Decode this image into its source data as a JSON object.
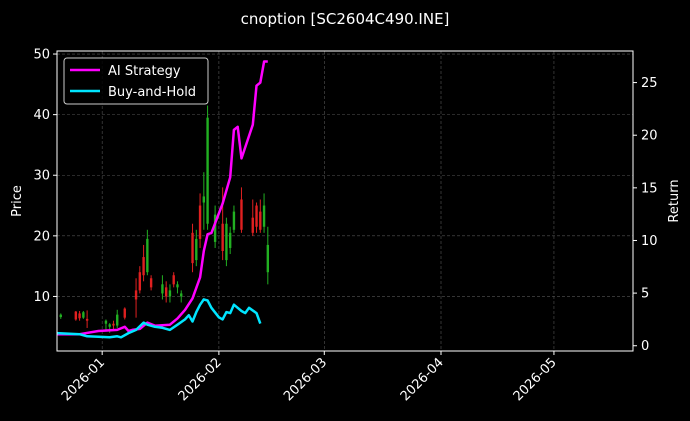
{
  "chart_data": {
    "type": "line",
    "title": "cnoption [SC2604C490.INE]",
    "ylabel_left": "Price",
    "ylabel_right": "Return",
    "x_range": [
      "2025-12-20",
      "2026-05-22"
    ],
    "x_ticks": [
      "2026-01",
      "2026-02",
      "2026-03",
      "2026-04",
      "2026-05"
    ],
    "ylim_left": [
      1,
      50.5
    ],
    "ylim_right": [
      -0.5,
      28
    ],
    "yticks_left": [
      10,
      20,
      30,
      40,
      50
    ],
    "yticks_right": [
      0,
      5,
      10,
      15,
      20,
      25
    ],
    "grid": true,
    "legend_position": "top-left",
    "colors": {
      "background": "#000000",
      "ai_strategy": "#ff00ff",
      "buy_and_hold": "#00e5ff",
      "candle_up": "#22b022",
      "candle_down": "#e02020",
      "grid": "#555555"
    },
    "series": [
      {
        "name": "AI Strategy",
        "axis": "right",
        "points": [
          [
            "2025-12-20",
            1.1
          ],
          [
            "2025-12-26",
            1.1
          ],
          [
            "2025-12-31",
            1.4
          ],
          [
            "2026-01-05",
            1.5
          ],
          [
            "2026-01-07",
            1.8
          ],
          [
            "2026-01-08",
            1.4
          ],
          [
            "2026-01-09",
            1.5
          ],
          [
            "2026-01-11",
            1.6
          ],
          [
            "2026-01-13",
            2.2
          ],
          [
            "2026-01-15",
            1.9
          ],
          [
            "2026-01-19",
            2.0
          ],
          [
            "2026-01-21",
            2.6
          ],
          [
            "2026-01-23",
            3.4
          ],
          [
            "2026-01-25",
            4.5
          ],
          [
            "2026-01-27",
            6.5
          ],
          [
            "2026-01-28",
            9.0
          ],
          [
            "2026-01-29",
            10.6
          ],
          [
            "2026-01-30",
            10.7
          ],
          [
            "2026-02-02",
            13.5
          ],
          [
            "2026-02-04",
            16.0
          ],
          [
            "2026-02-05",
            20.5
          ],
          [
            "2026-02-06",
            20.8
          ],
          [
            "2026-02-07",
            17.8
          ],
          [
            "2026-02-10",
            21.0
          ],
          [
            "2026-02-11",
            24.7
          ],
          [
            "2026-02-12",
            25.0
          ],
          [
            "2026-02-13",
            27.0
          ],
          [
            "2026-02-14",
            27.0
          ]
        ]
      },
      {
        "name": "Buy-and-Hold",
        "axis": "right",
        "points": [
          [
            "2025-12-20",
            1.2
          ],
          [
            "2025-12-26",
            1.1
          ],
          [
            "2025-12-28",
            0.9
          ],
          [
            "2026-01-03",
            0.8
          ],
          [
            "2026-01-05",
            0.9
          ],
          [
            "2026-01-06",
            0.8
          ],
          [
            "2026-01-08",
            1.2
          ],
          [
            "2026-01-10",
            1.5
          ],
          [
            "2026-01-12",
            2.2
          ],
          [
            "2026-01-13",
            2.0
          ],
          [
            "2026-01-15",
            1.8
          ],
          [
            "2026-01-17",
            1.7
          ],
          [
            "2026-01-19",
            1.5
          ],
          [
            "2026-01-21",
            2.0
          ],
          [
            "2026-01-23",
            2.5
          ],
          [
            "2026-01-24",
            2.9
          ],
          [
            "2026-01-25",
            2.3
          ],
          [
            "2026-01-26",
            3.2
          ],
          [
            "2026-01-27",
            3.9
          ],
          [
            "2026-01-28",
            4.4
          ],
          [
            "2026-01-29",
            4.3
          ],
          [
            "2026-01-30",
            3.6
          ],
          [
            "2026-02-01",
            2.7
          ],
          [
            "2026-02-02",
            2.5
          ],
          [
            "2026-02-03",
            3.2
          ],
          [
            "2026-02-04",
            3.1
          ],
          [
            "2026-02-05",
            3.9
          ],
          [
            "2026-02-07",
            3.3
          ],
          [
            "2026-02-08",
            3.1
          ],
          [
            "2026-02-09",
            3.6
          ],
          [
            "2026-02-11",
            3.1
          ],
          [
            "2026-02-12",
            2.1
          ]
        ]
      }
    ],
    "candles": [
      {
        "date": "2025-12-21",
        "open": 6.6,
        "high": 7.2,
        "low": 6.3,
        "close": 7.0
      },
      {
        "date": "2025-12-25",
        "open": 7.5,
        "high": 7.6,
        "low": 6.0,
        "close": 6.2
      },
      {
        "date": "2025-12-26",
        "open": 7.2,
        "high": 7.6,
        "low": 6.0,
        "close": 6.4
      },
      {
        "date": "2025-12-27",
        "open": 6.5,
        "high": 7.6,
        "low": 6.3,
        "close": 7.4
      },
      {
        "date": "2025-12-28",
        "open": 6.3,
        "high": 7.7,
        "low": 4.8,
        "close": 6.0
      },
      {
        "date": "2026-01-02",
        "open": 5.5,
        "high": 6.2,
        "low": 4.2,
        "close": 6.0
      },
      {
        "date": "2026-01-03",
        "open": 5.0,
        "high": 5.6,
        "low": 4.0,
        "close": 5.4
      },
      {
        "date": "2026-01-04",
        "open": 5.5,
        "high": 6.0,
        "low": 4.5,
        "close": 5.2
      },
      {
        "date": "2026-01-05",
        "open": 5.2,
        "high": 7.8,
        "low": 4.8,
        "close": 7.0
      },
      {
        "date": "2026-01-07",
        "open": 8.0,
        "high": 8.2,
        "low": 6.2,
        "close": 6.5
      },
      {
        "date": "2026-01-10",
        "open": 11.0,
        "high": 13.0,
        "low": 6.5,
        "close": 9.5
      },
      {
        "date": "2026-01-11",
        "open": 14.0,
        "high": 15.0,
        "low": 10.5,
        "close": 11.0
      },
      {
        "date": "2026-01-12",
        "open": 16.5,
        "high": 18.5,
        "low": 12.5,
        "close": 13.5
      },
      {
        "date": "2026-01-13",
        "open": 14.0,
        "high": 21.0,
        "low": 13.5,
        "close": 19.5
      },
      {
        "date": "2026-01-14",
        "open": 13.0,
        "high": 13.5,
        "low": 11.0,
        "close": 11.5
      },
      {
        "date": "2026-01-17",
        "open": 10.5,
        "high": 13.5,
        "low": 9.5,
        "close": 12.0
      },
      {
        "date": "2026-01-18",
        "open": 11.5,
        "high": 12.5,
        "low": 9.0,
        "close": 10.0
      },
      {
        "date": "2026-01-19",
        "open": 10.0,
        "high": 12.0,
        "low": 9.0,
        "close": 11.0
      },
      {
        "date": "2026-01-20",
        "open": 13.5,
        "high": 14.0,
        "low": 11.5,
        "close": 12.0
      },
      {
        "date": "2026-01-21",
        "open": 11.5,
        "high": 12.5,
        "low": 10.5,
        "close": 12.0
      },
      {
        "date": "2026-01-22",
        "open": 10.0,
        "high": 11.0,
        "low": 9.0,
        "close": 10.5
      },
      {
        "date": "2026-01-25",
        "open": 20.5,
        "high": 22.0,
        "low": 14.0,
        "close": 15.5
      },
      {
        "date": "2026-01-26",
        "open": 16.0,
        "high": 21.0,
        "low": 15.0,
        "close": 19.5
      },
      {
        "date": "2026-01-27",
        "open": 25.0,
        "high": 27.0,
        "low": 18.0,
        "close": 19.5
      },
      {
        "date": "2026-01-28",
        "open": 25.5,
        "high": 30.5,
        "low": 21.0,
        "close": 26.5
      },
      {
        "date": "2026-01-29",
        "open": 22.0,
        "high": 41.5,
        "low": 21.0,
        "close": 39.5
      },
      {
        "date": "2026-01-31",
        "open": 19.0,
        "high": 25.0,
        "low": 18.0,
        "close": 23.5
      },
      {
        "date": "2026-02-02",
        "open": 22.0,
        "high": 28.0,
        "low": 16.0,
        "close": 17.5
      },
      {
        "date": "2026-02-03",
        "open": 16.0,
        "high": 23.0,
        "low": 15.0,
        "close": 22.0
      },
      {
        "date": "2026-02-04",
        "open": 18.0,
        "high": 21.5,
        "low": 17.0,
        "close": 20.5
      },
      {
        "date": "2026-02-05",
        "open": 21.0,
        "high": 25.0,
        "low": 20.5,
        "close": 24.0
      },
      {
        "date": "2026-02-07",
        "open": 26.0,
        "high": 28.0,
        "low": 20.5,
        "close": 21.0
      },
      {
        "date": "2026-02-10",
        "open": 23.0,
        "high": 26.0,
        "low": 20.0,
        "close": 20.5
      },
      {
        "date": "2026-02-11",
        "open": 25.0,
        "high": 25.5,
        "low": 20.5,
        "close": 21.5
      },
      {
        "date": "2026-02-12",
        "open": 24.0,
        "high": 26.0,
        "low": 20.5,
        "close": 21.0
      },
      {
        "date": "2026-02-13",
        "open": 21.5,
        "high": 27.0,
        "low": 20.5,
        "close": 25.0
      },
      {
        "date": "2026-02-14",
        "open": 14.0,
        "high": 21.5,
        "low": 12.0,
        "close": 18.5
      }
    ]
  }
}
